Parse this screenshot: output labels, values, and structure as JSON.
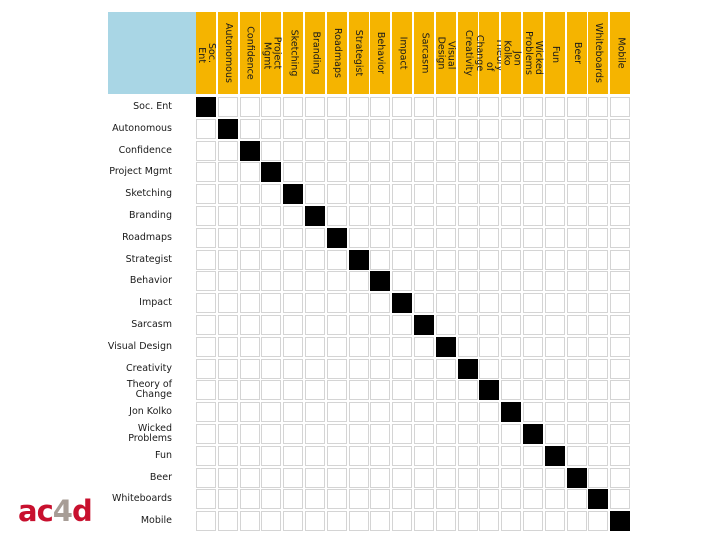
{
  "matrix": {
    "columns": [
      "Soc. Ent",
      "Autonomous",
      "Confidence",
      "Project Mgmt",
      "Sketching",
      "Branding",
      "Roadmaps",
      "Strategist",
      "Behavior",
      "Impact",
      "Sarcasm",
      "Visual Design",
      "Creativity",
      "Theory of\nChange",
      "Jon Kolko",
      "Wicked\nProblems",
      "Fun",
      "Beer",
      "Whiteboards",
      "Mobile"
    ],
    "rows": [
      "Soc. Ent",
      "Autonomous",
      "Confidence",
      "Project Mgmt",
      "Sketching",
      "Branding",
      "Roadmaps",
      "Strategist",
      "Behavior",
      "Impact",
      "Sarcasm",
      "Visual Design",
      "Creativity",
      "Theory of\nChange",
      "Jon Kolko",
      "Wicked\nProblems",
      "Fun",
      "Beer",
      "Whiteboards",
      "Mobile"
    ],
    "filled_cells": [
      [
        0,
        0
      ],
      [
        1,
        1
      ],
      [
        2,
        2
      ],
      [
        3,
        3
      ],
      [
        4,
        4
      ],
      [
        5,
        5
      ],
      [
        6,
        6
      ],
      [
        7,
        7
      ],
      [
        8,
        8
      ],
      [
        9,
        9
      ],
      [
        10,
        10
      ],
      [
        11,
        11
      ],
      [
        12,
        12
      ],
      [
        13,
        13
      ],
      [
        14,
        14
      ],
      [
        15,
        15
      ],
      [
        16,
        16
      ],
      [
        17,
        17
      ],
      [
        18,
        18
      ],
      [
        19,
        19
      ]
    ],
    "colors": {
      "header_fill": "#f5b400",
      "corner_fill": "#a9d6e5",
      "filled_cell": "#000000",
      "empty_cell": "#ffffff",
      "grid_line": "#d4d4d4"
    }
  },
  "logo": {
    "part1": "ac",
    "digit": "4",
    "part2": "d",
    "colors": {
      "letters": "#c8102e",
      "digit": "#a79d96"
    }
  }
}
